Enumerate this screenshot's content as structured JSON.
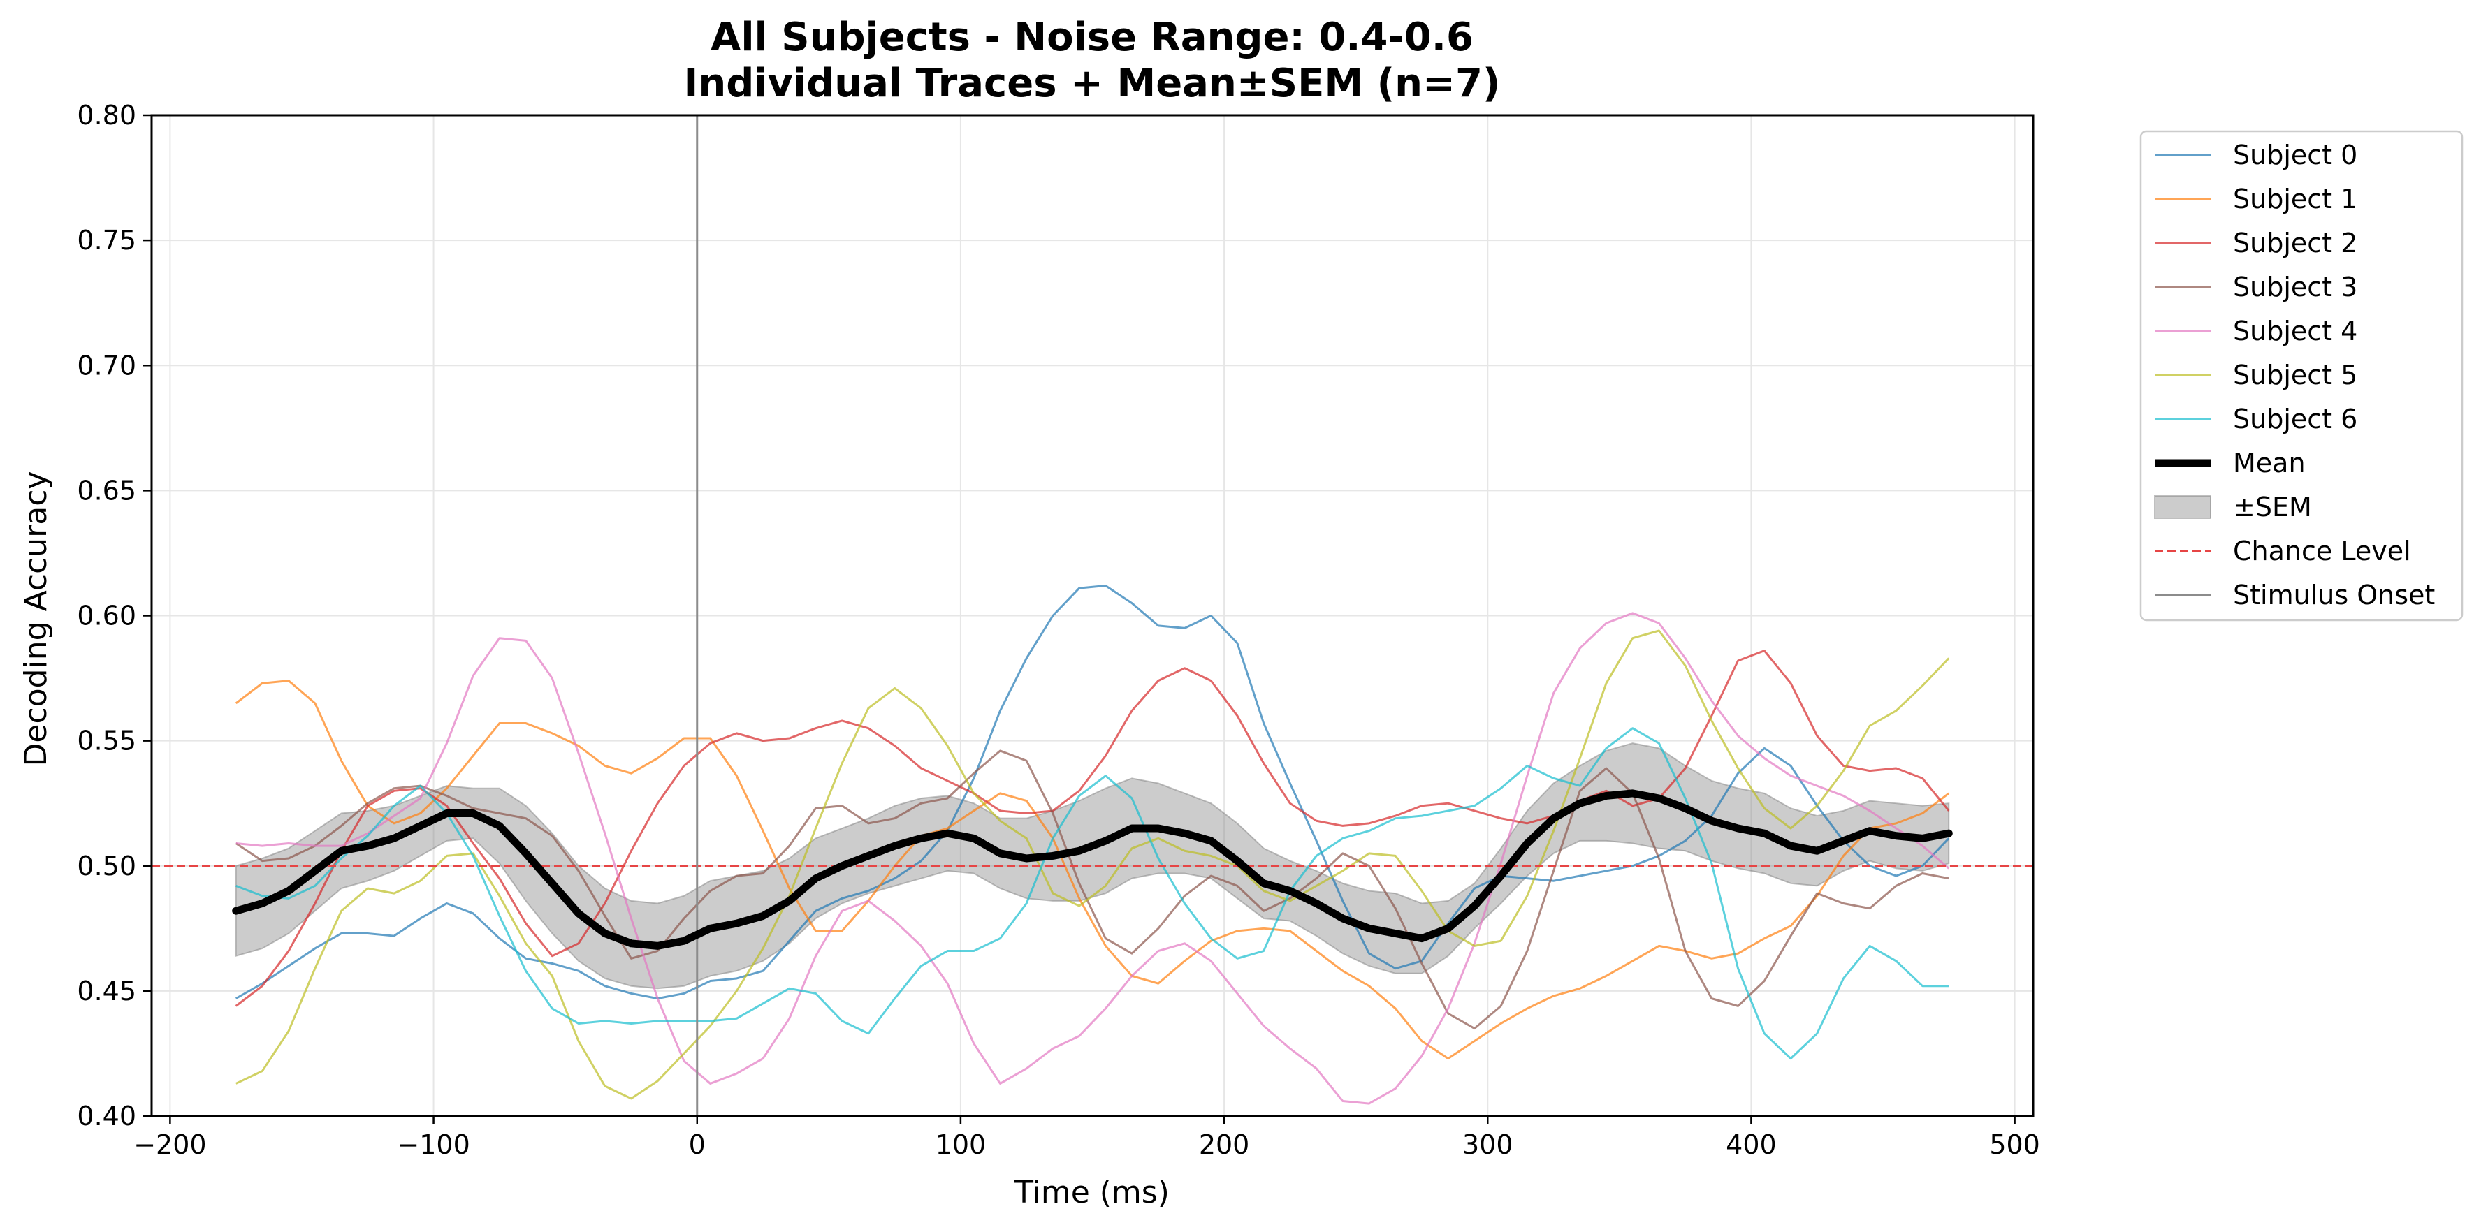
{
  "chart_data": {
    "type": "line",
    "title_line1": "All Subjects - Noise Range: 0.4-0.6",
    "title_line2": "Individual Traces + Mean±SEM (n=7)",
    "xlabel": "Time (ms)",
    "ylabel": "Decoding Accuracy",
    "xlim": [
      -207,
      507
    ],
    "ylim": [
      0.4,
      0.8
    ],
    "xticks": [
      -200,
      -100,
      0,
      100,
      200,
      300,
      400,
      500
    ],
    "xtick_labels": [
      "−200",
      "−100",
      "0",
      "100",
      "200",
      "300",
      "400",
      "500"
    ],
    "yticks": [
      0.4,
      0.45,
      0.5,
      0.55,
      0.6,
      0.65,
      0.7,
      0.75,
      0.8
    ],
    "ytick_labels": [
      "0.40",
      "0.45",
      "0.50",
      "0.55",
      "0.60",
      "0.65",
      "0.70",
      "0.75",
      "0.80"
    ],
    "grid": true,
    "legend_position": "outside-right",
    "chance_level": 0.5,
    "chance_label": "Chance Level",
    "chance_color": "#e64545",
    "stimulus_onset": 0,
    "onset_label": "Stimulus Onset",
    "onset_color": "#8c8c8c",
    "x": [
      -175,
      -165,
      -155,
      -145,
      -135,
      -125,
      -115,
      -105,
      -95,
      -85,
      -75,
      -65,
      -55,
      -45,
      -35,
      -25,
      -15,
      -5,
      5,
      15,
      25,
      35,
      45,
      55,
      65,
      75,
      85,
      95,
      105,
      115,
      125,
      135,
      145,
      155,
      165,
      175,
      185,
      195,
      205,
      215,
      225,
      235,
      245,
      255,
      265,
      275,
      285,
      295,
      305,
      315,
      325,
      335,
      345,
      355,
      365,
      375,
      385,
      395,
      405,
      415,
      425,
      435,
      445,
      455,
      465,
      475
    ],
    "series": [
      {
        "name": "Subject 0",
        "color": "#1f77b4",
        "values": [
          0.447,
          0.453,
          0.46,
          0.467,
          0.473,
          0.473,
          0.472,
          0.479,
          0.485,
          0.481,
          0.471,
          0.463,
          0.461,
          0.458,
          0.452,
          0.449,
          0.447,
          0.449,
          0.454,
          0.455,
          0.458,
          0.47,
          0.482,
          0.487,
          0.49,
          0.495,
          0.502,
          0.514,
          0.535,
          0.562,
          0.583,
          0.6,
          0.611,
          0.612,
          0.605,
          0.596,
          0.595,
          0.6,
          0.589,
          0.557,
          0.533,
          0.51,
          0.486,
          0.465,
          0.459,
          0.462,
          0.477,
          0.491,
          0.496,
          0.495,
          0.494,
          0.496,
          0.498,
          0.5,
          0.504,
          0.51,
          0.52,
          0.537,
          0.547,
          0.54,
          0.524,
          0.51,
          0.5,
          0.496,
          0.5,
          0.511
        ]
      },
      {
        "name": "Subject 1",
        "color": "#ff7f0e",
        "values": [
          0.565,
          0.573,
          0.574,
          0.565,
          0.542,
          0.524,
          0.517,
          0.521,
          0.531,
          0.544,
          0.557,
          0.557,
          0.553,
          0.548,
          0.54,
          0.537,
          0.543,
          0.551,
          0.551,
          0.536,
          0.514,
          0.491,
          0.474,
          0.474,
          0.486,
          0.5,
          0.512,
          0.515,
          0.522,
          0.529,
          0.526,
          0.511,
          0.487,
          0.468,
          0.456,
          0.453,
          0.462,
          0.47,
          0.474,
          0.475,
          0.474,
          0.466,
          0.458,
          0.452,
          0.443,
          0.43,
          0.423,
          0.43,
          0.437,
          0.443,
          0.448,
          0.451,
          0.456,
          0.462,
          0.468,
          0.466,
          0.463,
          0.465,
          0.471,
          0.476,
          0.488,
          0.504,
          0.515,
          0.517,
          0.521,
          0.529
        ]
      },
      {
        "name": "Subject 2",
        "color": "#d62728",
        "values": [
          0.444,
          0.452,
          0.466,
          0.485,
          0.506,
          0.524,
          0.53,
          0.531,
          0.524,
          0.509,
          0.495,
          0.477,
          0.464,
          0.469,
          0.485,
          0.506,
          0.525,
          0.54,
          0.549,
          0.553,
          0.55,
          0.551,
          0.555,
          0.558,
          0.555,
          0.548,
          0.539,
          0.534,
          0.529,
          0.522,
          0.521,
          0.522,
          0.53,
          0.544,
          0.562,
          0.574,
          0.579,
          0.574,
          0.56,
          0.541,
          0.525,
          0.518,
          0.516,
          0.517,
          0.52,
          0.524,
          0.525,
          0.522,
          0.519,
          0.517,
          0.52,
          0.526,
          0.53,
          0.524,
          0.527,
          0.539,
          0.56,
          0.582,
          0.586,
          0.573,
          0.552,
          0.54,
          0.538,
          0.539,
          0.535,
          0.522
        ]
      },
      {
        "name": "Subject 3",
        "color": "#8c564b",
        "values": [
          0.509,
          0.502,
          0.503,
          0.508,
          0.516,
          0.525,
          0.531,
          0.532,
          0.528,
          0.523,
          0.521,
          0.519,
          0.512,
          0.498,
          0.48,
          0.463,
          0.466,
          0.479,
          0.49,
          0.496,
          0.497,
          0.508,
          0.523,
          0.524,
          0.517,
          0.519,
          0.525,
          0.527,
          0.537,
          0.546,
          0.542,
          0.521,
          0.493,
          0.471,
          0.465,
          0.475,
          0.488,
          0.496,
          0.492,
          0.482,
          0.487,
          0.495,
          0.505,
          0.5,
          0.483,
          0.461,
          0.441,
          0.435,
          0.444,
          0.466,
          0.498,
          0.53,
          0.539,
          0.529,
          0.503,
          0.466,
          0.447,
          0.444,
          0.454,
          0.472,
          0.489,
          0.485,
          0.483,
          0.492,
          0.497,
          0.495
        ]
      },
      {
        "name": "Subject 4",
        "color": "#e377c2",
        "values": [
          0.509,
          0.508,
          0.509,
          0.508,
          0.508,
          0.513,
          0.52,
          0.527,
          0.549,
          0.576,
          0.591,
          0.59,
          0.575,
          0.545,
          0.513,
          0.479,
          0.447,
          0.422,
          0.413,
          0.417,
          0.423,
          0.439,
          0.464,
          0.482,
          0.486,
          0.478,
          0.468,
          0.453,
          0.429,
          0.413,
          0.419,
          0.427,
          0.432,
          0.443,
          0.456,
          0.466,
          0.469,
          0.462,
          0.449,
          0.436,
          0.427,
          0.419,
          0.406,
          0.405,
          0.411,
          0.424,
          0.443,
          0.469,
          0.501,
          0.536,
          0.569,
          0.587,
          0.597,
          0.601,
          0.597,
          0.583,
          0.566,
          0.552,
          0.543,
          0.536,
          0.532,
          0.528,
          0.522,
          0.515,
          0.508,
          0.499
        ]
      },
      {
        "name": "Subject 5",
        "color": "#bcbd22",
        "values": [
          0.413,
          0.418,
          0.434,
          0.459,
          0.482,
          0.491,
          0.489,
          0.494,
          0.504,
          0.505,
          0.488,
          0.469,
          0.456,
          0.43,
          0.412,
          0.407,
          0.414,
          0.425,
          0.436,
          0.45,
          0.467,
          0.488,
          0.515,
          0.541,
          0.563,
          0.571,
          0.563,
          0.548,
          0.529,
          0.518,
          0.511,
          0.489,
          0.484,
          0.492,
          0.507,
          0.511,
          0.506,
          0.504,
          0.5,
          0.49,
          0.486,
          0.492,
          0.498,
          0.505,
          0.504,
          0.49,
          0.474,
          0.468,
          0.47,
          0.488,
          0.514,
          0.543,
          0.573,
          0.591,
          0.594,
          0.58,
          0.558,
          0.539,
          0.523,
          0.515,
          0.524,
          0.538,
          0.556,
          0.562,
          0.572,
          0.583
        ]
      },
      {
        "name": "Subject 6",
        "color": "#17becf",
        "values": [
          0.492,
          0.488,
          0.487,
          0.492,
          0.503,
          0.512,
          0.524,
          0.532,
          0.521,
          0.504,
          0.48,
          0.458,
          0.443,
          0.437,
          0.438,
          0.437,
          0.438,
          0.438,
          0.438,
          0.439,
          0.445,
          0.451,
          0.449,
          0.438,
          0.433,
          0.447,
          0.46,
          0.466,
          0.466,
          0.471,
          0.485,
          0.511,
          0.528,
          0.536,
          0.527,
          0.503,
          0.485,
          0.471,
          0.463,
          0.466,
          0.49,
          0.504,
          0.511,
          0.514,
          0.519,
          0.52,
          0.522,
          0.524,
          0.531,
          0.54,
          0.535,
          0.532,
          0.547,
          0.555,
          0.549,
          0.527,
          0.501,
          0.459,
          0.433,
          0.423,
          0.433,
          0.455,
          0.468,
          0.462,
          0.452,
          0.452
        ]
      }
    ],
    "mean": {
      "name": "Mean",
      "color": "#000000",
      "values": [
        0.482,
        0.485,
        0.49,
        0.498,
        0.506,
        0.508,
        0.511,
        0.516,
        0.521,
        0.521,
        0.516,
        0.505,
        0.493,
        0.481,
        0.473,
        0.469,
        0.468,
        0.47,
        0.475,
        0.477,
        0.48,
        0.486,
        0.495,
        0.5,
        0.504,
        0.508,
        0.511,
        0.513,
        0.511,
        0.505,
        0.503,
        0.504,
        0.506,
        0.51,
        0.515,
        0.515,
        0.513,
        0.51,
        0.502,
        0.493,
        0.49,
        0.485,
        0.479,
        0.475,
        0.473,
        0.471,
        0.475,
        0.484,
        0.496,
        0.509,
        0.519,
        0.525,
        0.528,
        0.529,
        0.527,
        0.523,
        0.518,
        0.515,
        0.513,
        0.508,
        0.506,
        0.51,
        0.514,
        0.512,
        0.511,
        0.513
      ]
    },
    "sem": {
      "name": "±SEM",
      "color": "#7f7f7f",
      "values": [
        0.018,
        0.018,
        0.017,
        0.016,
        0.015,
        0.014,
        0.013,
        0.012,
        0.011,
        0.01,
        0.015,
        0.019,
        0.02,
        0.019,
        0.018,
        0.017,
        0.017,
        0.018,
        0.019,
        0.019,
        0.018,
        0.017,
        0.016,
        0.015,
        0.015,
        0.016,
        0.016,
        0.015,
        0.014,
        0.014,
        0.016,
        0.018,
        0.02,
        0.021,
        0.02,
        0.018,
        0.016,
        0.015,
        0.015,
        0.014,
        0.012,
        0.013,
        0.014,
        0.015,
        0.016,
        0.014,
        0.011,
        0.009,
        0.011,
        0.013,
        0.014,
        0.015,
        0.018,
        0.02,
        0.02,
        0.017,
        0.016,
        0.016,
        0.016,
        0.015,
        0.014,
        0.012,
        0.012,
        0.013,
        0.013,
        0.012
      ]
    }
  }
}
